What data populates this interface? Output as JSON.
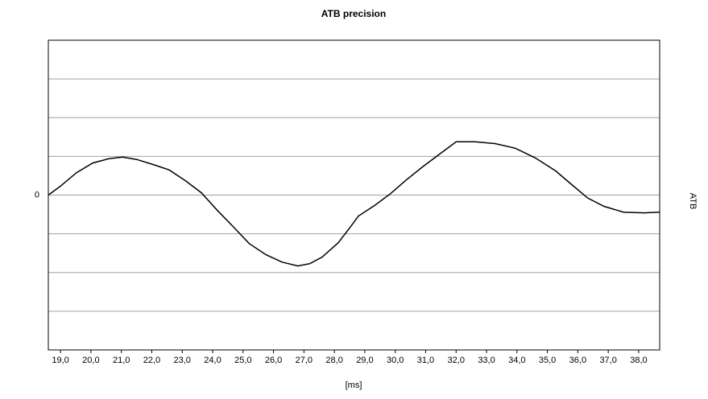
{
  "chart_data": {
    "type": "line",
    "title": "ATB precision",
    "x_label": "[ms]",
    "y_label": "ATB",
    "x": [
      18.6,
      19.0,
      19.53,
      20.06,
      20.59,
      21.04,
      21.5,
      22.04,
      22.57,
      23.1,
      23.63,
      24.16,
      24.69,
      25.2,
      25.75,
      26.28,
      26.8,
      27.2,
      27.6,
      28.13,
      28.52,
      28.79,
      29.32,
      29.85,
      30.38,
      30.9,
      31.43,
      32.0,
      32.62,
      33.28,
      33.95,
      34.6,
      35.27,
      35.8,
      36.33,
      36.86,
      37.5,
      38.18,
      38.68
    ],
    "series": [
      {
        "name": "ATB",
        "color": "#000000",
        "values": [
          0,
          0.23,
          0.58,
          0.83,
          0.94,
          0.98,
          0.92,
          0.79,
          0.65,
          0.375,
          0.06,
          -0.4,
          -0.83,
          -1.25,
          -1.54,
          -1.73,
          -1.83,
          -1.77,
          -1.6,
          -1.23,
          -0.83,
          -0.54,
          -0.27,
          0.04,
          0.4,
          0.73,
          1.04,
          1.375,
          1.375,
          1.33,
          1.21,
          0.96,
          0.625,
          0.27,
          -0.08,
          -0.29,
          -0.44,
          -0.46,
          -0.44
        ]
      }
    ],
    "xlim": [
      18.6,
      38.69
    ],
    "xticks": [
      {
        "value": 19,
        "label": "19,0"
      },
      {
        "value": 20,
        "label": "20,0"
      },
      {
        "value": 21,
        "label": "21,0"
      },
      {
        "value": 22,
        "label": "22,0"
      },
      {
        "value": 23,
        "label": "23,0"
      },
      {
        "value": 24,
        "label": "24,0"
      },
      {
        "value": 25,
        "label": "25,0"
      },
      {
        "value": 26,
        "label": "26,0"
      },
      {
        "value": 27,
        "label": "27,0"
      },
      {
        "value": 28,
        "label": "28,0"
      },
      {
        "value": 29,
        "label": "29,0"
      },
      {
        "value": 30,
        "label": "30,0"
      },
      {
        "value": 31,
        "label": "31,0"
      },
      {
        "value": 32,
        "label": "32,0"
      },
      {
        "value": 33,
        "label": "33,0"
      },
      {
        "value": 34,
        "label": "34,0"
      },
      {
        "value": 35,
        "label": "35,0"
      },
      {
        "value": 36,
        "label": "36,0"
      },
      {
        "value": 37,
        "label": "37,0"
      },
      {
        "value": 38,
        "label": "38,0"
      }
    ],
    "ylim": [
      -4.0,
      4.0
    ],
    "yticks": [
      0
    ],
    "ygrid": [
      -3,
      -2,
      -1,
      0,
      1,
      2,
      3
    ],
    "grid": true
  }
}
